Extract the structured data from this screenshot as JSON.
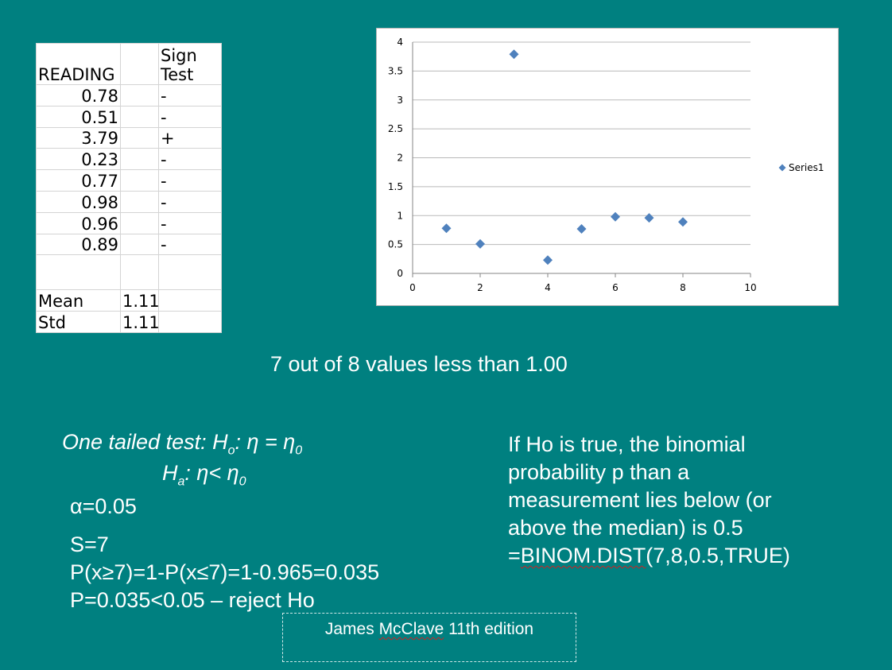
{
  "sheet": {
    "header_reading": "READING",
    "header_sign_line1": "Sign",
    "header_sign_line2": "Test",
    "rows": [
      {
        "reading": "0.78",
        "sign": "-"
      },
      {
        "reading": "0.51",
        "sign": "-"
      },
      {
        "reading": "3.79",
        "sign": "+"
      },
      {
        "reading": "0.23",
        "sign": "-"
      },
      {
        "reading": "0.77",
        "sign": "-"
      },
      {
        "reading": "0.98",
        "sign": "-"
      },
      {
        "reading": "0.96",
        "sign": "-"
      },
      {
        "reading": "0.89",
        "sign": "-"
      }
    ],
    "mean_label": "Mean",
    "mean_value": "1.11",
    "std_label": "Std",
    "std_value": "1.11"
  },
  "chart_data": {
    "type": "scatter",
    "title": "",
    "xlabel": "",
    "ylabel": "",
    "xlim": [
      0,
      10
    ],
    "ylim": [
      0,
      4
    ],
    "x_ticks": [
      0,
      2,
      4,
      6,
      8,
      10
    ],
    "y_ticks": [
      "0",
      "0.5",
      "1",
      "1.5",
      "2",
      "2.5",
      "3",
      "3.5",
      "4"
    ],
    "grid": true,
    "legend_position": "right",
    "series": [
      {
        "name": "Series1",
        "color": "#4f81bd",
        "marker": "diamond",
        "x": [
          1,
          2,
          3,
          4,
          5,
          6,
          7,
          8
        ],
        "y": [
          0.78,
          0.51,
          3.79,
          0.23,
          0.77,
          0.98,
          0.96,
          0.89
        ]
      }
    ]
  },
  "summary": "7 out of 8 values less than 1.00",
  "hypothesis": {
    "prefix": "One tailed test: H",
    "h0_sub": "o",
    "h0_rest": ": η = η",
    "eta0_sub": "0",
    "ha": "H",
    "ha_sub": "a",
    "ha_rest": ": η< η",
    "eta0_sub2": "0"
  },
  "alpha": "α=0.05",
  "calc": {
    "line1": "S=7",
    "line2": "P(x≥7)=1-P(x≤7)=1-0.965=0.035",
    "line3": "P=0.035<0.05 – reject Ho"
  },
  "explanation": {
    "line1": "If Ho is true, the binomial",
    "line2": "probability p than a",
    "line3": "measurement lies below (or",
    "line4": "above the median) is 0.5",
    "formula_prefix": "=",
    "formula_func": "BINOM.DIST",
    "formula_args": "(7,8,0.5,TRUE)"
  },
  "footer": {
    "prefix": "James ",
    "name_squiggle": "McClave",
    "suffix": " 11th edition"
  }
}
